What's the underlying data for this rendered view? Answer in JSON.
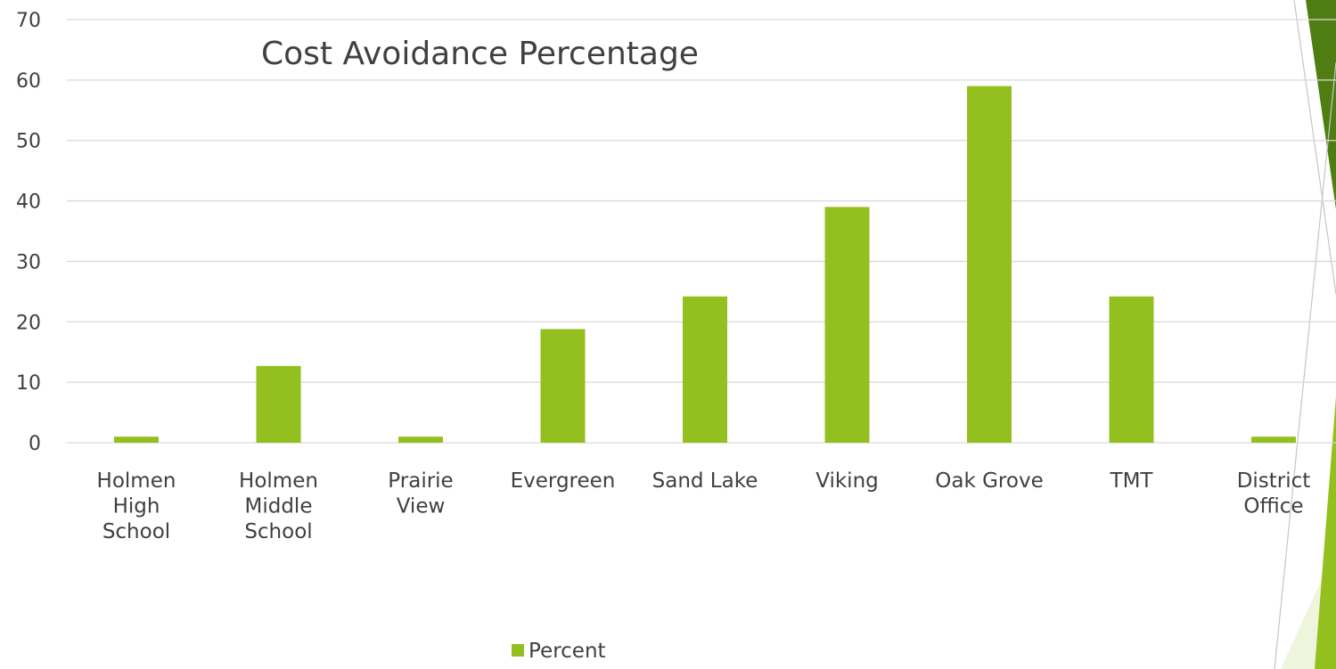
{
  "chart_data": {
    "type": "bar",
    "title": "Cost Avoidance Percentage",
    "categories": [
      [
        "Holmen",
        "High",
        "School"
      ],
      [
        "Holmen",
        "Middle",
        "School"
      ],
      [
        "Prairie",
        "View"
      ],
      [
        "Evergreen"
      ],
      [
        "Sand Lake"
      ],
      [
        "Viking"
      ],
      [
        "Oak Grove"
      ],
      [
        "TMT"
      ],
      [
        "District",
        "Office"
      ]
    ],
    "series": [
      {
        "name": "Percent",
        "values": [
          1,
          12.7,
          1,
          18.8,
          24.2,
          39,
          59,
          24.2,
          1
        ]
      }
    ],
    "ylim": [
      0,
      70
    ],
    "yticks": [
      0,
      10,
      20,
      30,
      40,
      50,
      60,
      70
    ],
    "grid": true,
    "legend": "bottom-center",
    "colors": {
      "bar": "#93c01f",
      "grid": "#d9d9d9",
      "text": "#404040",
      "accent": "#7fb21a",
      "accent_dark": "#4f7d12",
      "accent_light": "#eef5dc"
    }
  }
}
